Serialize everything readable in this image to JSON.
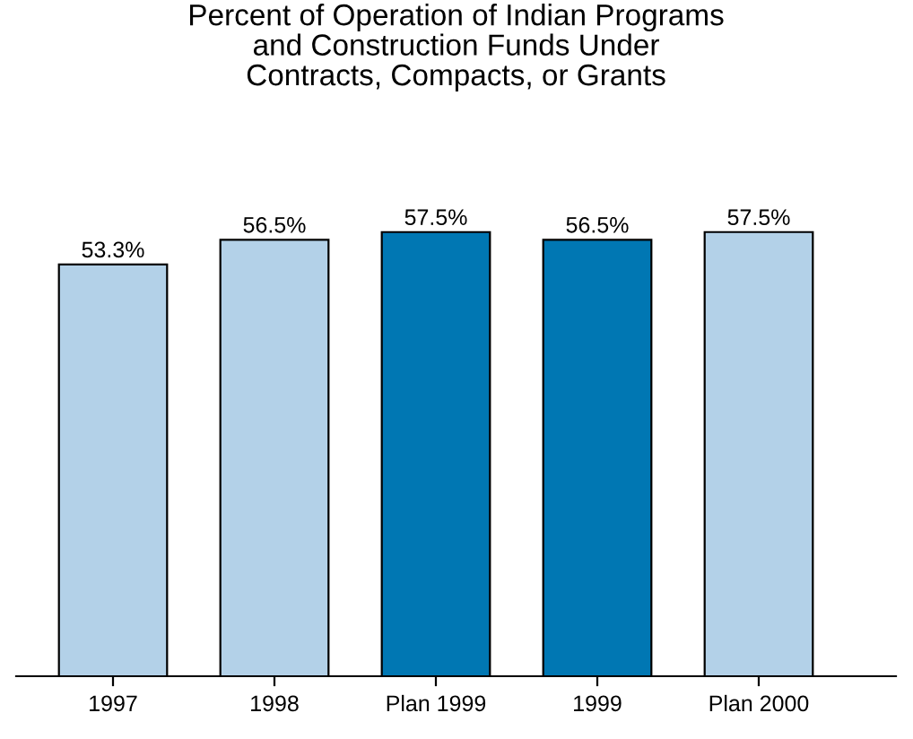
{
  "chart_data": {
    "type": "bar",
    "title": "Percent of Operation of Indian Programs\nand Construction Funds Under\nContracts, Compacts, or Grants",
    "categories": [
      "1997",
      "1998",
      "Plan 1999",
      "1999",
      "Plan 2000"
    ],
    "values": [
      53.3,
      56.5,
      57.5,
      56.5,
      57.5
    ],
    "colors": [
      "#b3d1e8",
      "#b3d1e8",
      "#0077b3",
      "#0077b3",
      "#b3d1e8"
    ],
    "value_labels": [
      "53.3%",
      "56.5%",
      "57.5%",
      "56.5%",
      "57.5%"
    ],
    "tick_labels": "x",
    "grid": false,
    "legend": false
  }
}
